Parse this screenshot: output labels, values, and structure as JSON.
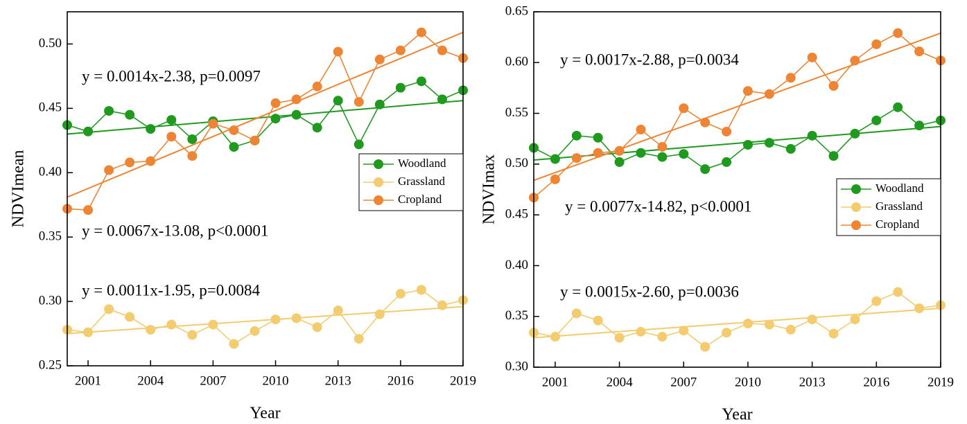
{
  "chart_data": [
    {
      "type": "line",
      "ylabel": "NDVImean",
      "xlabel": "Year",
      "x": [
        2000,
        2001,
        2002,
        2003,
        2004,
        2005,
        2006,
        2007,
        2008,
        2009,
        2010,
        2011,
        2012,
        2013,
        2014,
        2015,
        2016,
        2017,
        2018,
        2019
      ],
      "xlim": [
        2000,
        2019
      ],
      "xticks": [
        2001,
        2004,
        2007,
        2010,
        2013,
        2016,
        2019
      ],
      "ylim": [
        0.25,
        0.525
      ],
      "yticks": [
        0.25,
        {
          "value": 0.3,
          "label": "0.30"
        },
        0.35,
        {
          "value": 0.4,
          "label": "0.40"
        },
        0.45,
        {
          "value": 0.5,
          "label": "0.50"
        }
      ],
      "legend": "center right",
      "series": [
        {
          "name": "Woodland",
          "color": "#1f9a1f",
          "values": [
            0.437,
            0.432,
            0.448,
            0.445,
            0.434,
            0.441,
            0.426,
            0.44,
            0.42,
            0.425,
            0.442,
            0.445,
            0.435,
            0.456,
            0.422,
            0.453,
            0.466,
            0.471,
            0.457,
            0.464
          ],
          "trend": [
            0.43,
            0.456
          ]
        },
        {
          "name": "Grassland",
          "color": "#f2cc6e",
          "values": [
            0.278,
            0.276,
            0.294,
            0.288,
            0.278,
            0.282,
            0.274,
            0.282,
            0.267,
            0.277,
            0.286,
            0.287,
            0.28,
            0.293,
            0.271,
            0.29,
            0.306,
            0.309,
            0.297,
            0.301
          ],
          "trend": [
            0.275,
            0.296
          ]
        },
        {
          "name": "Cropland",
          "color": "#ee8534",
          "values": [
            0.372,
            0.371,
            0.402,
            0.408,
            0.409,
            0.428,
            0.413,
            0.438,
            0.433,
            0.425,
            0.454,
            0.457,
            0.467,
            0.494,
            0.455,
            0.488,
            0.495,
            0.509,
            0.495,
            0.489
          ],
          "trend": [
            0.381,
            0.509
          ]
        }
      ],
      "annotations": [
        {
          "text": "y = 0.0014x-2.38, p=0.0097",
          "color": "#23962a"
        },
        {
          "text": "y = 0.0067x-13.08, p<0.0001",
          "color": "#ee7f2c"
        },
        {
          "text": "y = 0.0011x-1.95, p=0.0084",
          "color": "#f0d080"
        }
      ]
    },
    {
      "type": "line",
      "ylabel": "NDVImax",
      "xlabel": "Year",
      "x": [
        2000,
        2001,
        2002,
        2003,
        2004,
        2005,
        2006,
        2007,
        2008,
        2009,
        2010,
        2011,
        2012,
        2013,
        2014,
        2015,
        2016,
        2017,
        2018,
        2019
      ],
      "xlim": [
        2000,
        2019
      ],
      "xticks": [
        2001,
        2004,
        2007,
        2010,
        2013,
        2016,
        2019
      ],
      "ylim": [
        0.3,
        0.65
      ],
      "yticks": [
        {
          "value": 0.3,
          "label": "0.30"
        },
        0.35,
        {
          "value": 0.4,
          "label": "0.40"
        },
        0.45,
        {
          "value": 0.5,
          "label": "0.50"
        },
        0.55,
        {
          "value": 0.6,
          "label": "0.60"
        },
        0.65
      ],
      "legend": "center right",
      "series": [
        {
          "name": "Woodland",
          "color": "#1f9a1f",
          "values": [
            0.516,
            0.505,
            0.528,
            0.526,
            0.502,
            0.511,
            0.507,
            0.51,
            0.495,
            0.502,
            0.519,
            0.521,
            0.515,
            0.528,
            0.508,
            0.53,
            0.543,
            0.556,
            0.538,
            0.543
          ],
          "trend": [
            0.504,
            0.537
          ]
        },
        {
          "name": "Grassland",
          "color": "#f2cc6e",
          "values": [
            0.334,
            0.33,
            0.353,
            0.346,
            0.329,
            0.335,
            0.33,
            0.336,
            0.32,
            0.334,
            0.343,
            0.342,
            0.337,
            0.347,
            0.333,
            0.347,
            0.365,
            0.374,
            0.358,
            0.361
          ],
          "trend": [
            0.329,
            0.358
          ]
        },
        {
          "name": "Cropland",
          "color": "#ee8534",
          "values": [
            0.467,
            0.485,
            0.506,
            0.511,
            0.513,
            0.534,
            0.517,
            0.555,
            0.541,
            0.532,
            0.572,
            0.569,
            0.585,
            0.605,
            0.577,
            0.602,
            0.618,
            0.629,
            0.611,
            0.602
          ],
          "trend": [
            0.484,
            0.629
          ]
        }
      ],
      "annotations": [
        {
          "text": "y = 0.0017x-2.88, p=0.0034",
          "color": "#23962a"
        },
        {
          "text": "y = 0.0077x-14.82, p<0.0001",
          "color": "#ee7f2c"
        },
        {
          "text": "y = 0.0015x-2.60, p=0.0036",
          "color": "#f0d080"
        }
      ]
    }
  ]
}
